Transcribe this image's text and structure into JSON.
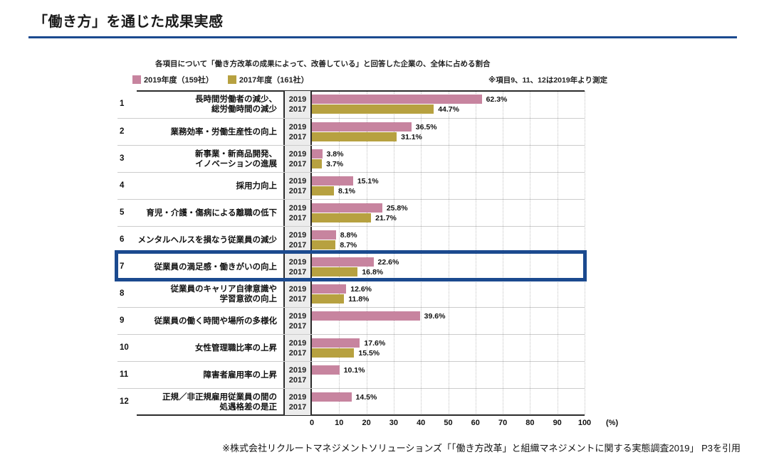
{
  "page": {
    "title": "「働き方」を通じた成果実感",
    "footer": "※株式会社リクルートマネジメントソリューションズ「「働き方改革」と組織マネジメントに関する実態調査2019」 P3を引用"
  },
  "chart_data": {
    "type": "bar",
    "orientation": "horizontal",
    "subtitle": "各項目について「働き方改革の成果によって、改善している」と回答した企業の、全体に占める割合",
    "note": "※項目9、11、12は2019年より測定",
    "legend_position": "top-left",
    "grid": "dotted-vertical-every-10",
    "row_numbers": [
      "1",
      "2",
      "3",
      "4",
      "5",
      "6",
      "7",
      "8",
      "9",
      "10",
      "11",
      "12"
    ],
    "categories": [
      "長時間労働者の減少、\n総労働時間の減少",
      "業務効率・労働生産性の向上",
      "新事業・新商品開発、\nイノベーションの進展",
      "採用力向上",
      "育児・介護・傷病による離職の低下",
      "メンタルヘルスを損なう従業員の減少",
      "従業員の満足感・働きがいの向上",
      "従業員のキャリア自律意識や\n学習意欲の向上",
      "従業員の働く時間や場所の多様化",
      "女性管理職比率の上昇",
      "障害者雇用率の上昇",
      "正規／非正規雇用従業員の間の\n処遇格差の是正"
    ],
    "year_labels": [
      "2019",
      "2017"
    ],
    "series": [
      {
        "name": "2019年度（159社）",
        "color": "#c7849f",
        "values": [
          62.3,
          36.5,
          3.8,
          15.1,
          25.8,
          8.8,
          22.6,
          12.6,
          39.6,
          17.6,
          10.1,
          14.5
        ]
      },
      {
        "name": "2017年度（161社）",
        "color": "#b7a140",
        "values": [
          44.7,
          31.1,
          3.7,
          8.1,
          21.7,
          8.7,
          16.8,
          11.8,
          null,
          15.5,
          null,
          null
        ]
      }
    ],
    "xlim": [
      0,
      100
    ],
    "x_ticks": [
      0,
      10,
      20,
      30,
      40,
      50,
      60,
      70,
      80,
      90,
      100
    ],
    "x_unit": "(%)",
    "highlight_row": "7",
    "colors": {
      "series_2019": "#c7849f",
      "series_2017": "#b7a140",
      "highlight_border": "#1b4a8f",
      "title_underline": "#1c4693",
      "year_column_bg": "#ececec"
    }
  }
}
